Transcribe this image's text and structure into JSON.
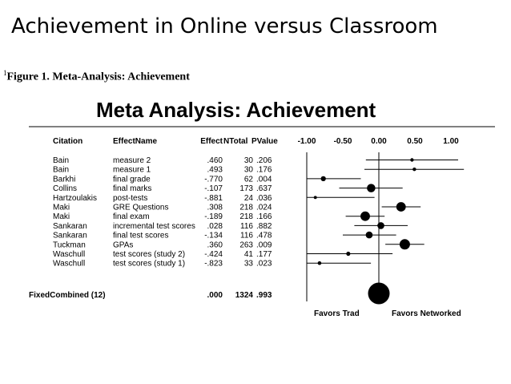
{
  "slide_title": "Achievement in Online versus Classroom",
  "figure_caption": {
    "marker": "1",
    "text": "Figure 1. Meta-Analysis: Achievement"
  },
  "chart_data": {
    "type": "forest",
    "title": "Meta Analysis: Achievement",
    "columns": [
      "Citation",
      "EffectName",
      "Effect",
      "NTotal",
      "PValue"
    ],
    "rows": [
      {
        "citation": "Bain",
        "effect_name": "measure 2",
        "effect_label": ".460",
        "effect": 0.46,
        "ntotal": "30",
        "pvalue": ".206",
        "ci": [
          -0.18,
          1.1
        ]
      },
      {
        "citation": "Bain",
        "effect_name": "measure 1",
        "effect_label": ".493",
        "effect": 0.493,
        "ntotal": "30",
        "pvalue": ".176",
        "ci": [
          -0.2,
          1.18
        ]
      },
      {
        "citation": "Barkhi",
        "effect_name": "final grade",
        "effect_label": "-.770",
        "effect": -0.77,
        "ntotal": "62",
        "pvalue": ".004",
        "ci": [
          -1.3,
          -0.25
        ]
      },
      {
        "citation": "Collins",
        "effect_name": "final marks",
        "effect_label": "-.107",
        "effect": -0.107,
        "ntotal": "173",
        "pvalue": ".637",
        "ci": [
          -0.55,
          0.33
        ]
      },
      {
        "citation": "Hartzoulakis",
        "effect_name": "post-tests",
        "effect_label": "-.881",
        "effect": -0.881,
        "ntotal": "24",
        "pvalue": ".036",
        "ci": [
          -1.7,
          -0.06
        ]
      },
      {
        "citation": "Maki",
        "effect_name": "GRE Questions",
        "effect_label": ".308",
        "effect": 0.308,
        "ntotal": "218",
        "pvalue": ".024",
        "ci": [
          0.04,
          0.58
        ]
      },
      {
        "citation": "Maki",
        "effect_name": "final exam",
        "effect_label": "-.189",
        "effect": -0.189,
        "ntotal": "218",
        "pvalue": ".166",
        "ci": [
          -0.46,
          0.08
        ]
      },
      {
        "citation": "Sankaran",
        "effect_name": "incremental test scores",
        "effect_label": ".028",
        "effect": 0.028,
        "ntotal": "116",
        "pvalue": ".882",
        "ci": [
          -0.34,
          0.4
        ]
      },
      {
        "citation": "Sankaran",
        "effect_name": "final test scores",
        "effect_label": "-.134",
        "effect": -0.134,
        "ntotal": "116",
        "pvalue": ".478",
        "ci": [
          -0.5,
          0.24
        ]
      },
      {
        "citation": "Tuckman",
        "effect_name": "GPAs",
        "effect_label": ".360",
        "effect": 0.36,
        "ntotal": "263",
        "pvalue": ".009",
        "ci": [
          0.09,
          0.63
        ]
      },
      {
        "citation": "Waschull",
        "effect_name": "test scores (study 2)",
        "effect_label": "-.424",
        "effect": -0.424,
        "ntotal": "41",
        "pvalue": ".177",
        "ci": [
          -1.04,
          0.19
        ]
      },
      {
        "citation": "Waschull",
        "effect_name": "test scores (study 1)",
        "effect_label": "-.823",
        "effect": -0.823,
        "ntotal": "33",
        "pvalue": ".023",
        "ci": [
          -1.53,
          -0.11
        ]
      }
    ],
    "combined": {
      "label": "FixedCombined (12)",
      "effect_label": ".000",
      "effect": 0.0,
      "ntotal": "1324",
      "pvalue": ".993"
    },
    "x_ticks": [
      {
        "value": -1.0,
        "label": "-1.00"
      },
      {
        "value": -0.5,
        "label": "-0.50"
      },
      {
        "value": 0.0,
        "label": "0.00"
      },
      {
        "value": 0.5,
        "label": "0.50"
      },
      {
        "value": 1.0,
        "label": "1.00"
      }
    ],
    "xlim": [
      -1.0,
      1.0
    ],
    "favors_left": "Favors Trad",
    "favors_right": "Favors Networked"
  }
}
